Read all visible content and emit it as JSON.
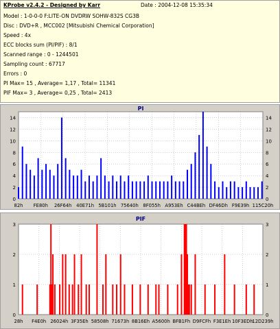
{
  "info": {
    "title": "KProbe v2.4.2 - Designed by Karr",
    "date": "Date : 2004-12-08 15:35:34",
    "lines": [
      "Model : 1-0-0-0 F:LITE-ON DVDRW SOHW-832S  CG3B",
      "Disc : DVD+R , MCC002 [Mitsubishi Chemical Corporation]",
      "Speed : 4x",
      "ECC blocks sum (PI/PIF) : 8/1",
      "Scanned range : 0 - 1244501",
      "Sampling count : 67717",
      "Errors : 0",
      "PI Max= 15 , Average= 1,17 , Total= 11341",
      "PIF Max= 3 , Average= 0,25 , Total= 2413"
    ]
  },
  "chart_data": [
    {
      "type": "bar",
      "title": "PI",
      "color": "#0000ff",
      "ylim": [
        0,
        15
      ],
      "yticks": [
        0,
        2,
        4,
        6,
        8,
        10,
        12,
        14
      ],
      "xlim": [
        0,
        1244501
      ],
      "xtick_labels": [
        "82h",
        "FE80h",
        "26F64h",
        "40E71h",
        "5B101h",
        "75640h",
        "8F055h",
        "A953Eh",
        "C44BEh",
        "DF46Dh",
        "F9E39h",
        "115C20h"
      ],
      "grid": true,
      "x": [
        0,
        20000,
        40000,
        60000,
        80000,
        100000,
        120000,
        140000,
        160000,
        180000,
        200000,
        220000,
        240000,
        260000,
        280000,
        300000,
        320000,
        340000,
        360000,
        380000,
        400000,
        420000,
        440000,
        460000,
        480000,
        500000,
        520000,
        540000,
        560000,
        580000,
        600000,
        620000,
        640000,
        660000,
        680000,
        700000,
        720000,
        740000,
        760000,
        780000,
        800000,
        820000,
        840000,
        860000,
        880000,
        900000,
        920000,
        940000,
        960000,
        980000,
        1000000,
        1020000,
        1040000,
        1060000,
        1080000,
        1100000,
        1120000,
        1140000,
        1160000,
        1180000,
        1200000,
        1220000,
        1240000
      ],
      "values": [
        2,
        9,
        6,
        5,
        4,
        7,
        5,
        6,
        5,
        4,
        6,
        14,
        7,
        5,
        4,
        4,
        5,
        3,
        4,
        3,
        4,
        7,
        4,
        3,
        4,
        3,
        4,
        3,
        4,
        3,
        3,
        3,
        3,
        4,
        3,
        3,
        3,
        3,
        3,
        4,
        3,
        3,
        3,
        5,
        6,
        8,
        11,
        15,
        9,
        6,
        3,
        2,
        3,
        2,
        3,
        3,
        2,
        2,
        3,
        2,
        2,
        2,
        3
      ]
    },
    {
      "type": "bar",
      "title": "PIF",
      "color": "#ff0000",
      "ylim": [
        0,
        3
      ],
      "yticks": [
        0,
        1,
        2,
        3
      ],
      "xlim": [
        0,
        1244501
      ],
      "xtick_labels": [
        "28h",
        "F4E0h",
        "26024h",
        "3F35Eh",
        "58508h",
        "71673h",
        "8B16Eh",
        "A5600h",
        "BFB1Fh",
        "D9FCFh",
        "F3E1Eh",
        "10F3EDh",
        "12D239h"
      ],
      "grid": true,
      "x": [
        20000,
        95000,
        160000,
        165000,
        170000,
        175000,
        185000,
        210000,
        225000,
        240000,
        258000,
        275000,
        285000,
        305000,
        320000,
        345000,
        360000,
        400000,
        430000,
        445000,
        480000,
        500000,
        520000,
        540000,
        580000,
        620000,
        660000,
        700000,
        715000,
        760000,
        810000,
        830000,
        845000,
        850000,
        855000,
        860000,
        865000,
        870000,
        880000,
        900000,
        950000,
        1000000,
        1050000,
        1100000,
        1160000,
        1200000
      ],
      "values": [
        1,
        1,
        1,
        3,
        1,
        2,
        1,
        1,
        2,
        2,
        1,
        1,
        2,
        1,
        2,
        1,
        1,
        3,
        1,
        2,
        1,
        1,
        2,
        1,
        1,
        1,
        1,
        1,
        1,
        1,
        1,
        2,
        3,
        3,
        3,
        2,
        1,
        1,
        1,
        2,
        1,
        1,
        2,
        1,
        1,
        1
      ]
    }
  ]
}
